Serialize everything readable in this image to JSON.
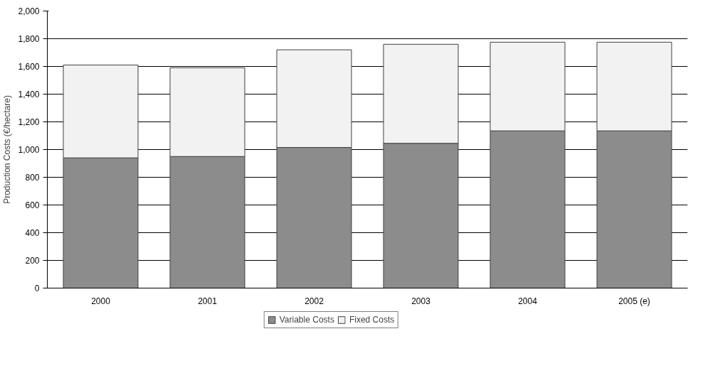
{
  "chart_data": {
    "type": "bar",
    "stacked": true,
    "ylabel": "Production Costs (€/hectare)",
    "categories": [
      "2000",
      "2001",
      "2002",
      "2003",
      "2004",
      "2005 (e)"
    ],
    "series": [
      {
        "name": "Variable Costs",
        "color": "#8c8c8c",
        "values": [
          940,
          950,
          1015,
          1045,
          1135,
          1135
        ]
      },
      {
        "name": "Fixed Costs",
        "color": "#f2f2f2",
        "values": [
          670,
          640,
          705,
          715,
          640,
          640
        ]
      }
    ],
    "ylim": [
      0,
      2000
    ],
    "yticks": [
      0,
      {
        "value": 200,
        "label": "200"
      },
      {
        "value": 400,
        "label": "400"
      },
      {
        "value": 600,
        "label": "600"
      },
      {
        "value": 800,
        "label": "800"
      },
      {
        "value": 1000,
        "label": "1,000"
      },
      {
        "value": 1200,
        "label": "1,200"
      },
      {
        "value": 1400,
        "label": "1,400"
      },
      {
        "value": 1600,
        "label": "1,600"
      },
      {
        "value": 1800,
        "label": "1,800"
      },
      {
        "value": 2000,
        "label": "2,000"
      }
    ],
    "grid": "y",
    "legend": "bottom"
  }
}
